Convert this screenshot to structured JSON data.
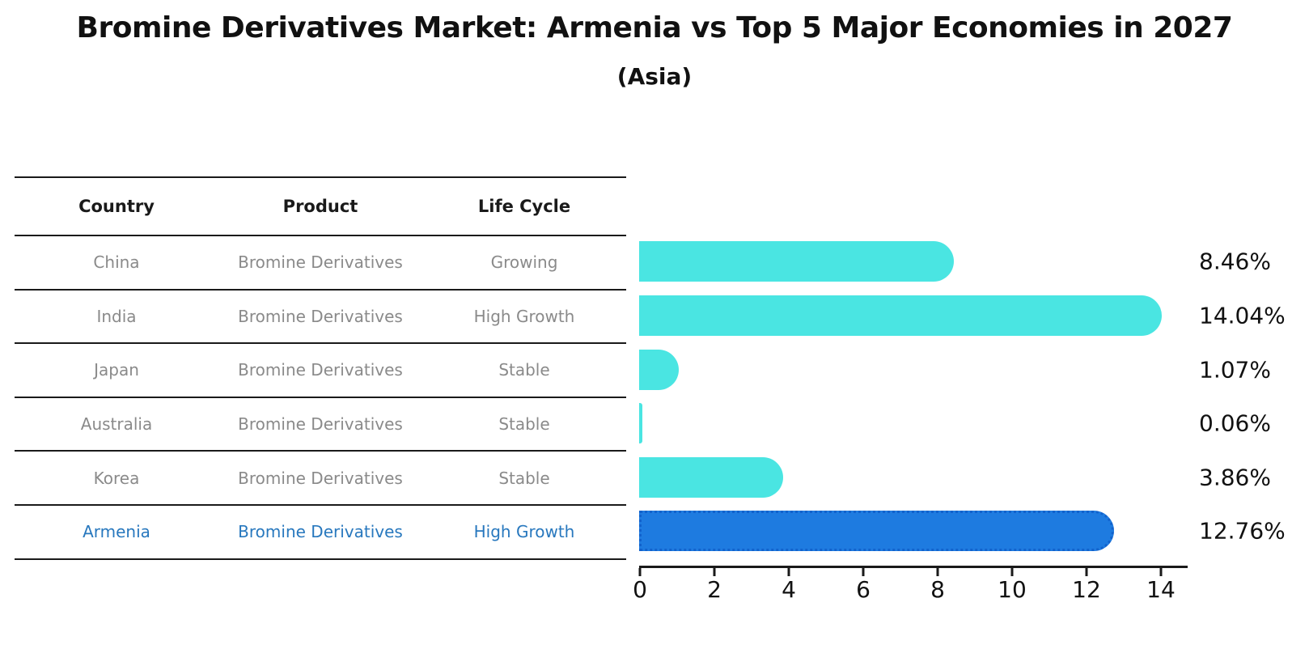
{
  "title": "Bromine Derivatives Market: Armenia vs Top 5 Major Economies in 2027",
  "subtitle": "(Asia)",
  "colors": {
    "bar_default": "#4AE5E2",
    "bar_highlight_fill": "#1E7BE0",
    "bar_highlight_border": "#1262CC",
    "highlight_text": "#2878BE",
    "table_text": "#8A8A8A",
    "header_text": "#1A1A1A",
    "axis_line": "#1A1A1A"
  },
  "table": {
    "columns": [
      "Country",
      "Product",
      "Life Cycle"
    ]
  },
  "chart_data": {
    "type": "bar",
    "orientation": "horizontal",
    "title": "Bromine Derivatives Market: Armenia vs Top 5 Major Economies in 2027",
    "subtitle": "(Asia)",
    "categories": [
      "China",
      "India",
      "Japan",
      "Australia",
      "Korea",
      "Armenia"
    ],
    "values": [
      8.46,
      14.04,
      1.07,
      0.06,
      3.86,
      12.76
    ],
    "value_labels": [
      "8.46%",
      "14.04%",
      "1.07%",
      "0.06%",
      "3.86%",
      "12.76%"
    ],
    "rows": [
      {
        "country": "China",
        "product": "Bromine Derivatives",
        "life_cycle": "Growing",
        "value": 8.46,
        "label": "8.46%",
        "highlight": false
      },
      {
        "country": "India",
        "product": "Bromine Derivatives",
        "life_cycle": "High Growth",
        "value": 14.04,
        "label": "14.04%",
        "highlight": false
      },
      {
        "country": "Japan",
        "product": "Bromine Derivatives",
        "life_cycle": "Stable",
        "value": 1.07,
        "label": "1.07%",
        "highlight": false
      },
      {
        "country": "Australia",
        "product": "Bromine Derivatives",
        "life_cycle": "Stable",
        "value": 0.06,
        "label": "0.06%",
        "highlight": false
      },
      {
        "country": "Korea",
        "product": "Bromine Derivatives",
        "life_cycle": "Stable",
        "value": 3.86,
        "label": "3.86%",
        "highlight": false
      },
      {
        "country": "Armenia",
        "product": "Bromine Derivatives",
        "life_cycle": "High Growth",
        "value": 12.76,
        "label": "12.76%",
        "highlight": true
      }
    ],
    "highlight_category": "Armenia",
    "xlabel": "",
    "ylabel": "",
    "xlim": [
      0,
      14.7
    ],
    "xticks": [
      0,
      2,
      4,
      6,
      8,
      10,
      12,
      14
    ],
    "grid": false,
    "legend": "none"
  }
}
